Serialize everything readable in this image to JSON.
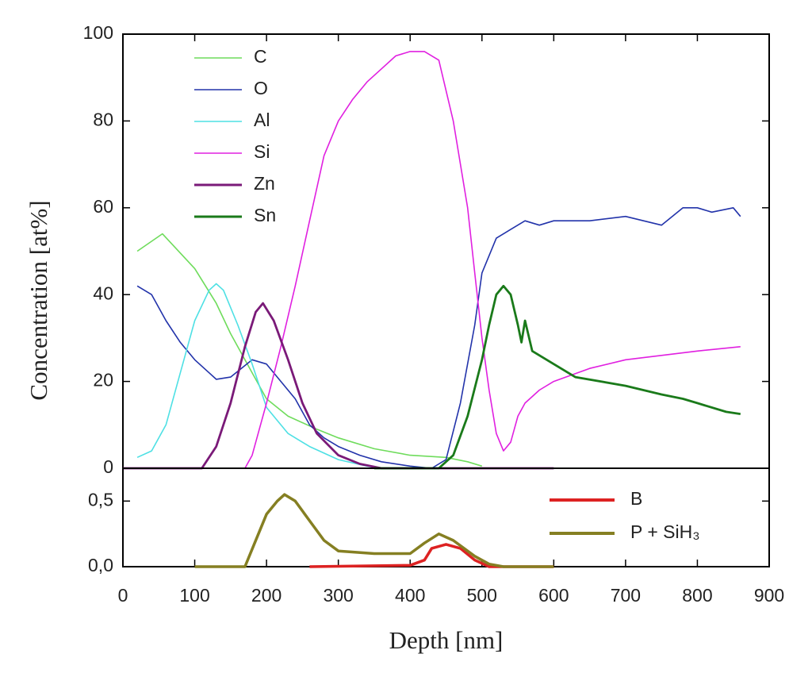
{
  "chart_data": [
    {
      "type": "line",
      "ylabel": "Concentration [at%]",
      "xlim": [
        0,
        900
      ],
      "ylim": [
        0,
        100
      ],
      "yticks": [
        0,
        20,
        40,
        60,
        80,
        100
      ],
      "legend": "upper left",
      "series": [
        {
          "name": "C",
          "color": "#6fdc5c",
          "x": [
            20,
            55,
            100,
            130,
            150,
            180,
            200,
            230,
            270,
            300,
            350,
            400,
            450,
            480,
            500
          ],
          "values": [
            50,
            54,
            46,
            38,
            31,
            22,
            16,
            12,
            9,
            7,
            4.5,
            3,
            2.5,
            1.5,
            0.5
          ]
        },
        {
          "name": "O",
          "color": "#2233aa",
          "x": [
            20,
            40,
            60,
            80,
            100,
            120,
            130,
            150,
            180,
            200,
            220,
            240,
            260,
            280,
            300,
            330,
            360,
            400,
            430,
            450,
            470,
            490,
            500,
            520,
            540,
            560,
            580,
            600,
            650,
            700,
            750,
            780,
            800,
            820,
            850,
            860
          ],
          "values": [
            42,
            40,
            34,
            29,
            25,
            22,
            20.5,
            21,
            25,
            24,
            20,
            16,
            10,
            7,
            5,
            3,
            1.5,
            0.5,
            0,
            2,
            15,
            33,
            45,
            53,
            55,
            57,
            56,
            57,
            57,
            58,
            56,
            60,
            60,
            59,
            60,
            58
          ]
        },
        {
          "name": "Al",
          "color": "#4ee0e4",
          "x": [
            20,
            40,
            60,
            80,
            100,
            120,
            130,
            140,
            160,
            180,
            200,
            230,
            260,
            300,
            340,
            360
          ],
          "values": [
            2.5,
            4,
            10,
            22,
            34,
            41,
            42.5,
            41,
            33,
            24,
            14,
            8,
            5,
            2,
            0.5,
            0
          ]
        },
        {
          "name": "Si",
          "color": "#e020e0",
          "x": [
            0,
            170,
            180,
            200,
            220,
            240,
            260,
            280,
            300,
            320,
            340,
            360,
            380,
            400,
            420,
            440,
            460,
            480,
            490,
            500,
            510,
            520,
            530,
            540,
            550,
            560,
            580,
            600,
            650,
            700,
            750,
            800,
            860
          ],
          "values": [
            0,
            0,
            3,
            15,
            28,
            42,
            57,
            72,
            80,
            85,
            89,
            92,
            95,
            96,
            96,
            94,
            80,
            60,
            45,
            30,
            18,
            8,
            4,
            6,
            12,
            15,
            18,
            20,
            23,
            25,
            26,
            27,
            28
          ]
        },
        {
          "name": "Zn",
          "color": "#7a1a78",
          "x": [
            0,
            110,
            130,
            150,
            170,
            185,
            195,
            210,
            230,
            250,
            270,
            300,
            330,
            360,
            600
          ],
          "values": [
            0,
            0,
            5,
            15,
            28,
            36,
            38,
            34,
            25,
            15,
            8,
            3,
            1,
            0,
            0
          ]
        },
        {
          "name": "Sn",
          "color": "#1a7a1a",
          "x": [
            350,
            440,
            460,
            480,
            500,
            510,
            520,
            530,
            540,
            550,
            555,
            560,
            570,
            600,
            630,
            700,
            750,
            780,
            800,
            840,
            860
          ],
          "values": [
            0,
            0,
            3,
            12,
            25,
            33,
            40,
            42,
            40,
            33,
            29,
            34,
            27,
            24,
            21,
            19,
            17,
            16,
            15,
            13,
            12.5
          ]
        }
      ]
    },
    {
      "type": "line",
      "xlabel": "Depth [nm]",
      "xlim": [
        0,
        900
      ],
      "xticks": [
        0,
        100,
        200,
        300,
        400,
        500,
        600,
        700,
        800,
        900
      ],
      "ylim": [
        0,
        0.75
      ],
      "yticks": [
        {
          "value": 0,
          "label": "0,0"
        },
        {
          "value": 0.5,
          "label": "0,5"
        }
      ],
      "legend": "upper right",
      "series": [
        {
          "name": "B",
          "color": "#dd2222",
          "x": [
            260,
            400,
            420,
            430,
            450,
            470,
            490,
            510,
            600
          ],
          "values": [
            0,
            0.01,
            0.05,
            0.14,
            0.17,
            0.14,
            0.05,
            0,
            0
          ]
        },
        {
          "name": "P + SiH₃",
          "color": "#857f22",
          "x": [
            100,
            170,
            185,
            200,
            215,
            225,
            240,
            260,
            280,
            300,
            350,
            400,
            420,
            440,
            460,
            490,
            510,
            530,
            600
          ],
          "values": [
            0,
            0,
            0.2,
            0.4,
            0.5,
            0.55,
            0.5,
            0.35,
            0.2,
            0.12,
            0.1,
            0.1,
            0.18,
            0.25,
            0.2,
            0.08,
            0.02,
            0,
            0
          ]
        }
      ]
    }
  ]
}
